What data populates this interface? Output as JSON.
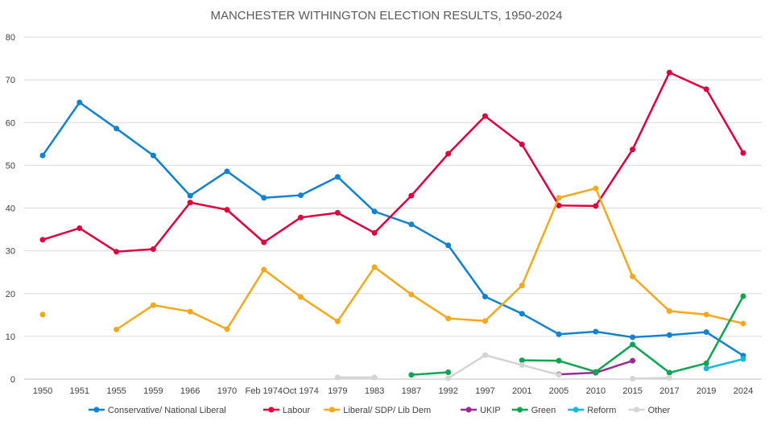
{
  "chart_data": {
    "type": "line",
    "title": "MANCHESTER WITHINGTON ELECTION RESULTS, 1950-2024",
    "xlabel": "",
    "ylabel": "",
    "ylim": [
      0,
      80
    ],
    "yticks": [
      0,
      10,
      20,
      30,
      40,
      50,
      60,
      70,
      80
    ],
    "grid": true,
    "legend_position": "bottom",
    "categories": [
      "1950",
      "1951",
      "1955",
      "1959",
      "1966",
      "1970",
      "Feb 1974",
      "Oct 1974",
      "1979",
      "1983",
      "1987",
      "1992",
      "1997",
      "2001",
      "2005",
      "2010",
      "2015",
      "2017",
      "2019",
      "2024"
    ],
    "series": [
      {
        "name": "Conservative/ National Liberal",
        "color": "#0F82D2",
        "values": [
          52.3,
          64.7,
          58.6,
          52.3,
          42.9,
          48.6,
          42.4,
          43.0,
          47.3,
          39.2,
          36.2,
          31.3,
          19.3,
          15.3,
          10.5,
          11.1,
          9.8,
          10.3,
          11.0,
          5.5
        ]
      },
      {
        "name": "Labour",
        "color": "#E0003C",
        "values": [
          32.6,
          35.3,
          29.8,
          30.4,
          41.3,
          39.6,
          32.0,
          37.8,
          38.9,
          34.2,
          42.9,
          52.7,
          61.5,
          54.9,
          40.6,
          40.5,
          53.7,
          71.7,
          67.8,
          52.9
        ]
      },
      {
        "name": "Liberal/ SDP/ Lib  Dem",
        "color": "#F5A81C",
        "values": [
          15.1,
          null,
          11.6,
          17.3,
          15.8,
          11.7,
          25.6,
          19.2,
          13.5,
          26.2,
          19.8,
          14.2,
          13.6,
          21.9,
          42.4,
          44.6,
          24.0,
          15.9,
          15.1,
          13.0
        ]
      },
      {
        "name": "UKIP",
        "color": "#982C93",
        "values": [
          null,
          null,
          null,
          null,
          null,
          null,
          null,
          null,
          null,
          null,
          null,
          null,
          null,
          null,
          1.1,
          1.5,
          4.3,
          null,
          null,
          null
        ]
      },
      {
        "name": "Green",
        "color": "#0AA650",
        "values": [
          null,
          null,
          null,
          null,
          null,
          null,
          null,
          null,
          null,
          null,
          1.0,
          1.6,
          null,
          4.4,
          4.3,
          1.7,
          8.1,
          1.5,
          3.7,
          19.4
        ]
      },
      {
        "name": "Reform",
        "color": "#16B7D9",
        "values": [
          null,
          null,
          null,
          null,
          null,
          null,
          null,
          null,
          null,
          null,
          null,
          null,
          null,
          null,
          null,
          null,
          null,
          null,
          2.5,
          4.7
        ]
      },
      {
        "name": "Other",
        "color": "#D4D4D4",
        "values": [
          null,
          null,
          null,
          null,
          null,
          null,
          null,
          null,
          0.4,
          0.4,
          null,
          0.2,
          5.6,
          3.3,
          1.0,
          null,
          0.1,
          0.3,
          null,
          null
        ]
      }
    ]
  }
}
